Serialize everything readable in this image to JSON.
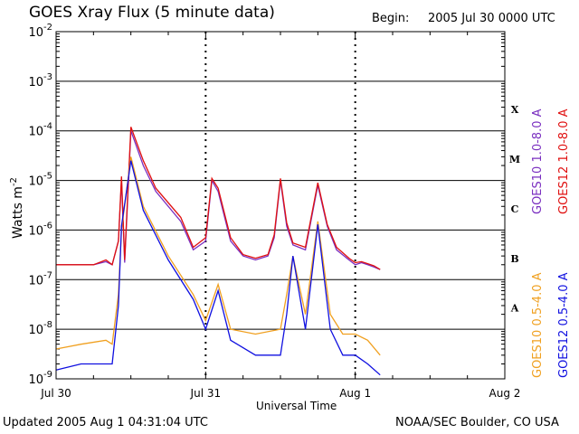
{
  "header": {
    "title": "GOES Xray Flux (5 minute data)",
    "begin_label": "Begin:",
    "begin_value": "2005 Jul 30 0000 UTC"
  },
  "footer": {
    "updated": "Updated 2005 Aug  1 04:31:04 UTC",
    "credit": "NOAA/SEC Boulder, CO USA"
  },
  "colors": {
    "goes10_long": "#7a2fc0",
    "goes12_long": "#e01010",
    "goes10_short": "#f0a020",
    "goes12_short": "#1010e0",
    "grid": "#000000"
  },
  "chart_data": {
    "type": "line",
    "title": "GOES Xray Flux (5 minute data)",
    "xlabel": "Universal Time",
    "ylabel": "Watts m",
    "ylabel_sup": "-2",
    "yscale": "log",
    "ylim": [
      1e-09,
      0.01
    ],
    "xlim": [
      "2005-07-30T00:00",
      "2005-08-02T00:00"
    ],
    "grid": true,
    "x_ticks": [
      "Jul 30",
      "Jul 31",
      "Aug 1",
      "Aug 2"
    ],
    "y_ticks": [
      {
        "base": "10",
        "exp": "-9"
      },
      {
        "base": "10",
        "exp": "-8"
      },
      {
        "base": "10",
        "exp": "-7"
      },
      {
        "base": "10",
        "exp": "-6"
      },
      {
        "base": "10",
        "exp": "-5"
      },
      {
        "base": "10",
        "exp": "-4"
      },
      {
        "base": "10",
        "exp": "-3"
      },
      {
        "base": "10",
        "exp": "-2"
      }
    ],
    "flare_classes": [
      "A",
      "B",
      "C",
      "M",
      "X"
    ],
    "legend": [
      {
        "label": "GOES10 1.0-8.0 A",
        "color": "#7a2fc0"
      },
      {
        "label": "GOES12 1.0-8.0 A",
        "color": "#e01010"
      },
      {
        "label": "GOES10 0.5-4.0 A",
        "color": "#f0a020"
      },
      {
        "label": "GOES12 0.5-4.0 A",
        "color": "#1010e0"
      }
    ],
    "series": [
      {
        "name": "GOES10 1.0-8.0 A",
        "color": "#7a2fc0",
        "x": [
          "2005-07-30T00:00",
          "2005-07-30T06:00",
          "2005-07-30T08:00",
          "2005-07-30T09:00",
          "2005-07-30T10:00",
          "2005-07-30T10:30",
          "2005-07-30T11:00",
          "2005-07-30T12:00",
          "2005-07-30T14:00",
          "2005-07-30T16:00",
          "2005-07-30T20:00",
          "2005-07-30T22:00",
          "2005-07-31T00:00",
          "2005-07-31T01:00",
          "2005-07-31T02:00",
          "2005-07-31T04:00",
          "2005-07-31T06:00",
          "2005-07-31T08:00",
          "2005-07-31T10:00",
          "2005-07-31T11:00",
          "2005-07-31T12:00",
          "2005-07-31T13:00",
          "2005-07-31T14:00",
          "2005-07-31T16:00",
          "2005-07-31T18:00",
          "2005-07-31T19:30",
          "2005-07-31T21:00",
          "2005-07-31T23:00",
          "2005-08-01T00:00",
          "2005-08-01T01:00",
          "2005-08-01T02:00",
          "2005-08-01T03:00",
          "2005-08-01T04:00"
        ],
        "values": [
          2e-07,
          2e-07,
          2.3e-07,
          2e-07,
          6e-07,
          1e-05,
          2.2e-07,
          0.0001,
          2e-05,
          6e-06,
          1.5e-06,
          4e-07,
          6e-07,
          1e-05,
          6e-06,
          6e-07,
          3e-07,
          2.5e-07,
          3e-07,
          7e-07,
          1e-05,
          1.2e-06,
          5e-07,
          4e-07,
          8e-06,
          1.2e-06,
          4e-07,
          2.5e-07,
          2e-07,
          2.2e-07,
          2e-07,
          1.8e-07,
          1.6e-07
        ]
      },
      {
        "name": "GOES12 1.0-8.0 A",
        "color": "#e01010",
        "x": [
          "2005-07-30T00:00",
          "2005-07-30T06:00",
          "2005-07-30T08:00",
          "2005-07-30T09:00",
          "2005-07-30T10:00",
          "2005-07-30T10:30",
          "2005-07-30T11:00",
          "2005-07-30T12:00",
          "2005-07-30T14:00",
          "2005-07-30T16:00",
          "2005-07-30T20:00",
          "2005-07-30T22:00",
          "2005-07-31T00:00",
          "2005-07-31T01:00",
          "2005-07-31T02:00",
          "2005-07-31T04:00",
          "2005-07-31T06:00",
          "2005-07-31T08:00",
          "2005-07-31T10:00",
          "2005-07-31T11:00",
          "2005-07-31T12:00",
          "2005-07-31T13:00",
          "2005-07-31T14:00",
          "2005-07-31T16:00",
          "2005-07-31T18:00",
          "2005-07-31T19:30",
          "2005-07-31T21:00",
          "2005-07-31T23:00",
          "2005-08-01T00:00",
          "2005-08-01T01:00",
          "2005-08-01T02:00",
          "2005-08-01T03:00",
          "2005-08-01T04:00"
        ],
        "values": [
          2e-07,
          2e-07,
          2.5e-07,
          2e-07,
          6e-07,
          1.2e-05,
          2.5e-07,
          0.00012,
          2.5e-05,
          7e-06,
          1.8e-06,
          4.5e-07,
          7e-07,
          1.1e-05,
          7e-06,
          7e-07,
          3.2e-07,
          2.7e-07,
          3.2e-07,
          8e-07,
          1.1e-05,
          1.4e-06,
          5.5e-07,
          4.5e-07,
          9e-06,
          1.3e-06,
          4.5e-07,
          2.7e-07,
          2.2e-07,
          2.3e-07,
          2.1e-07,
          1.9e-07,
          1.6e-07
        ]
      },
      {
        "name": "GOES10 0.5-4.0 A",
        "color": "#f0a020",
        "x": [
          "2005-07-30T00:00",
          "2005-07-30T04:00",
          "2005-07-30T08:00",
          "2005-07-30T09:00",
          "2005-07-30T10:00",
          "2005-07-30T10:30",
          "2005-07-30T12:00",
          "2005-07-30T14:00",
          "2005-07-30T18:00",
          "2005-07-30T22:00",
          "2005-07-31T00:00",
          "2005-07-31T02:00",
          "2005-07-31T04:00",
          "2005-07-31T08:00",
          "2005-07-31T12:00",
          "2005-07-31T13:00",
          "2005-07-31T14:00",
          "2005-07-31T16:00",
          "2005-07-31T18:00",
          "2005-07-31T20:00",
          "2005-07-31T22:00",
          "2005-08-01T00:00",
          "2005-08-01T02:00",
          "2005-08-01T04:00"
        ],
        "values": [
          4e-09,
          5e-09,
          6e-09,
          5e-09,
          5e-08,
          1e-06,
          3e-05,
          3e-06,
          3e-07,
          5e-08,
          1.5e-08,
          8e-08,
          1e-08,
          8e-09,
          1e-08,
          5e-08,
          3e-07,
          2e-08,
          1.5e-06,
          2e-08,
          8e-09,
          8e-09,
          6e-09,
          3e-09
        ]
      },
      {
        "name": "GOES12 0.5-4.0 A",
        "color": "#1010e0",
        "x": [
          "2005-07-30T00:00",
          "2005-07-30T04:00",
          "2005-07-30T08:00",
          "2005-07-30T09:00",
          "2005-07-30T10:00",
          "2005-07-30T10:30",
          "2005-07-30T12:00",
          "2005-07-30T14:00",
          "2005-07-30T18:00",
          "2005-07-30T22:00",
          "2005-07-31T00:00",
          "2005-07-31T02:00",
          "2005-07-31T04:00",
          "2005-07-31T08:00",
          "2005-07-31T12:00",
          "2005-07-31T13:00",
          "2005-07-31T14:00",
          "2005-07-31T16:00",
          "2005-07-31T18:00",
          "2005-07-31T20:00",
          "2005-07-31T22:00",
          "2005-08-01T00:00",
          "2005-08-01T02:00",
          "2005-08-01T04:00"
        ],
        "values": [
          1.5e-09,
          2e-09,
          2e-09,
          2e-09,
          3e-08,
          1.2e-06,
          2.5e-05,
          2.5e-06,
          2.5e-07,
          4e-08,
          1e-08,
          6e-08,
          6e-09,
          3e-09,
          3e-09,
          2e-08,
          3e-07,
          1e-08,
          1.3e-06,
          1e-08,
          3e-09,
          3e-09,
          2e-09,
          1.2e-09
        ]
      }
    ]
  }
}
